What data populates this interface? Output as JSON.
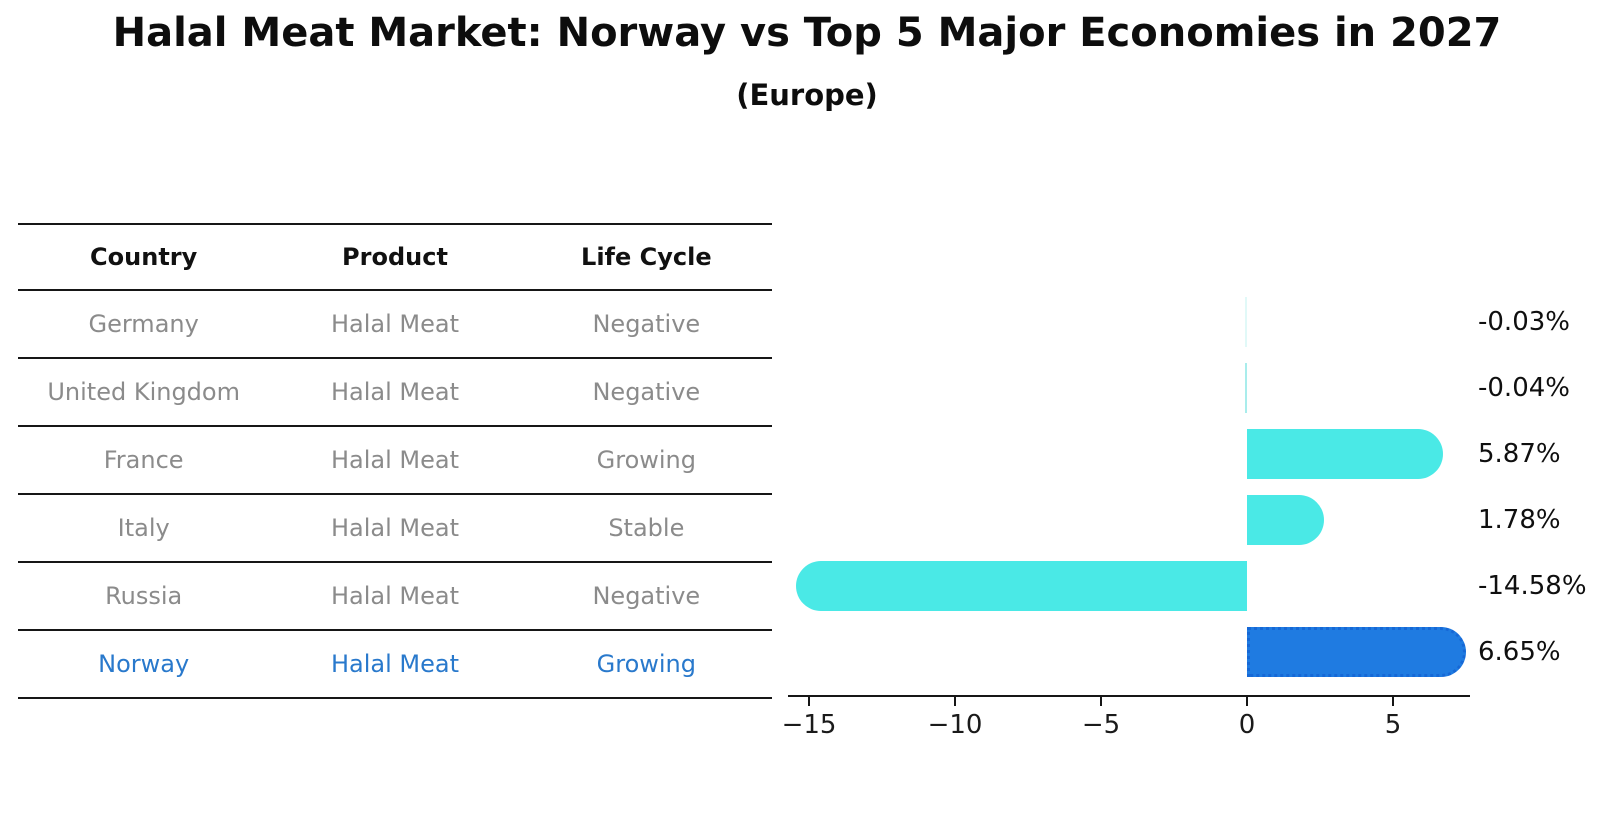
{
  "title": "Halal Meat Market: Norway vs Top 5 Major Economies in 2027",
  "subtitle": "(Europe)",
  "table": {
    "headers": [
      "Country",
      "Product",
      "Life Cycle"
    ],
    "rows": [
      {
        "country": "Germany",
        "product": "Halal Meat",
        "life_cycle": "Negative",
        "value_label": "-0.03%"
      },
      {
        "country": "United Kingdom",
        "product": "Halal Meat",
        "life_cycle": "Negative",
        "value_label": "-0.04%"
      },
      {
        "country": "France",
        "product": "Halal Meat",
        "life_cycle": "Growing",
        "value_label": "5.87%"
      },
      {
        "country": "Italy",
        "product": "Halal Meat",
        "life_cycle": "Stable",
        "value_label": "1.78%"
      },
      {
        "country": "Russia",
        "product": "Halal Meat",
        "life_cycle": "Negative",
        "value_label": "-14.58%"
      },
      {
        "country": "Norway",
        "product": "Halal Meat",
        "life_cycle": "Growing",
        "value_label": "6.65%"
      }
    ]
  },
  "chart_data": {
    "type": "bar",
    "orientation": "horizontal",
    "title": "Halal Meat Market: Norway vs Top 5 Major Economies in 2027 (Europe)",
    "categories": [
      "Germany",
      "United Kingdom",
      "France",
      "Italy",
      "Russia",
      "Norway"
    ],
    "values": [
      -0.03,
      -0.04,
      5.87,
      1.78,
      -14.58,
      6.65
    ],
    "value_labels": [
      "-0.03%",
      "-0.04%",
      "5.87%",
      "1.78%",
      "-14.58%",
      "6.65%"
    ],
    "units": "percent",
    "x_ticks": [
      -15,
      -10,
      -5,
      0,
      5
    ],
    "x_tick_labels": [
      "−15",
      "−10",
      "−5",
      "0",
      "5"
    ],
    "xlim": [
      -15.7,
      7.6
    ],
    "grid": false,
    "legend": "none",
    "highlight_category": "Norway",
    "colors": {
      "bar": "#4AE9E6",
      "bar_sliver": "#a9edec",
      "highlight_bar": "#1F7BE1",
      "highlight_border": "#1668d6",
      "highlight_text": "#2979cc",
      "axis": "#161616",
      "label_text": "#0f0f0f",
      "table_text": "#8b8b8b"
    }
  }
}
